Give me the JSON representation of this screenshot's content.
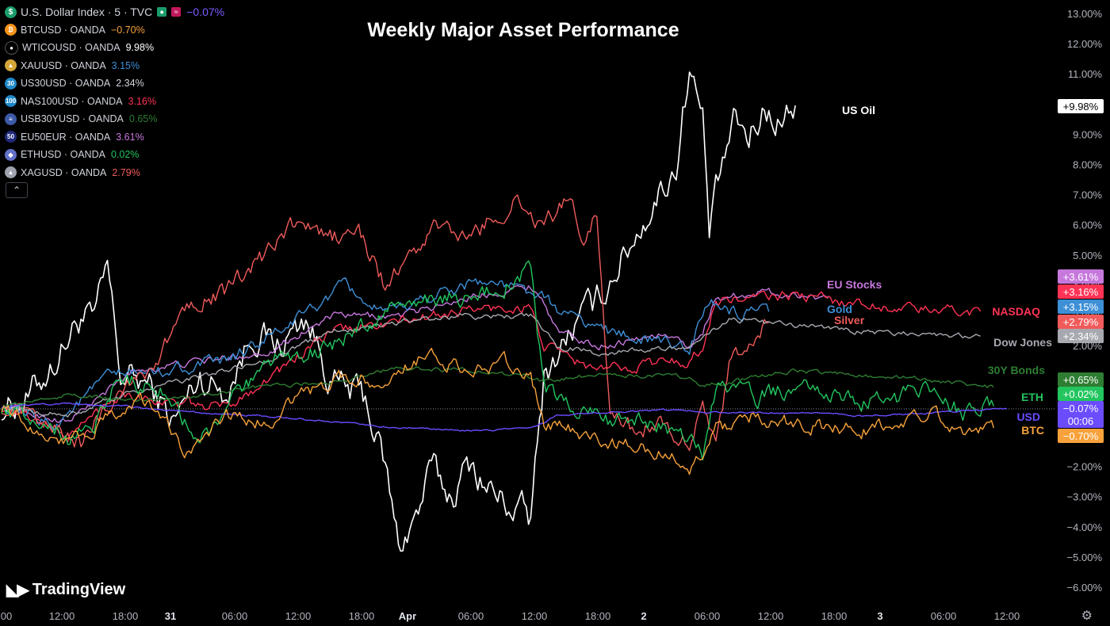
{
  "title": "Weekly Major Asset Performance",
  "legend": {
    "main": {
      "name": "U.S. Dollar Index · 5 · TVC",
      "value": "−0.07%",
      "color": "#7b5cff"
    },
    "items": [
      {
        "name": "BTCUSD · OANDA",
        "value": "−0.70%",
        "color": "#f7a23b",
        "icon": "btc-icon",
        "glyph": "₿",
        "iconColor": "#f7931a"
      },
      {
        "name": "WTICOUSD · OANDA",
        "value": "9.98%",
        "color": "#ffffff",
        "icon": "oil-drop-icon",
        "glyph": "●",
        "iconColor": "#000000"
      },
      {
        "name": "XAUUSD · OANDA",
        "value": "3.15%",
        "color": "#3d8fd6",
        "icon": "gold-icon",
        "glyph": "▲",
        "iconColor": "#d4a537"
      },
      {
        "name": "US30USD · OANDA",
        "value": "2.34%",
        "color": "#d1d4dc",
        "icon": "us30-icon",
        "glyph": "30",
        "iconColor": "#1e88c8"
      },
      {
        "name": "NAS100USD · OANDA",
        "value": "3.16%",
        "color": "#ff3355",
        "icon": "nas100-icon",
        "glyph": "100",
        "iconColor": "#1e88c8"
      },
      {
        "name": "USB30YUSD · OANDA",
        "value": "0.65%",
        "color": "#2e7d32",
        "icon": "us-flag-icon",
        "glyph": "≡",
        "iconColor": "#3c5aa6"
      },
      {
        "name": "EU50EUR · OANDA",
        "value": "3.61%",
        "color": "#c678dd",
        "icon": "eu50-icon",
        "glyph": "50",
        "iconColor": "#1f2a7a"
      },
      {
        "name": "ETHUSD · OANDA",
        "value": "0.02%",
        "color": "#22c55e",
        "icon": "eth-icon",
        "glyph": "◆",
        "iconColor": "#6270c9"
      },
      {
        "name": "XAGUSD · OANDA",
        "value": "2.79%",
        "color": "#f05b5b",
        "icon": "silver-icon",
        "glyph": "▲",
        "iconColor": "#9ea3ad"
      }
    ]
  },
  "brand": "TradingView",
  "chart_data": {
    "type": "line",
    "ylim": [
      -6.5,
      13.5
    ],
    "yticks": [
      "13.00%",
      "12.00%",
      "11.00%",
      "10.00%",
      "9.00%",
      "8.00%",
      "7.00%",
      "6.00%",
      "5.00%",
      "4.00%",
      "3.00%",
      "2.00%",
      "1.00%",
      "0.00%",
      "−1.00%",
      "−2.00%",
      "−3.00%",
      "−4.00%",
      "−5.00%",
      "−6.00%"
    ],
    "ytick_values": [
      13,
      12,
      11,
      10,
      9,
      8,
      7,
      6,
      5,
      4,
      3,
      2,
      1,
      0,
      -1,
      -2,
      -3,
      -4,
      -5,
      -6
    ],
    "xticks": [
      "00",
      "12:00",
      "18:00",
      "31",
      "06:00",
      "12:00",
      "18:00",
      "Apr",
      "06:00",
      "12:00",
      "18:00",
      "2",
      "06:00",
      "12:00",
      "18:00",
      "3",
      "06:00",
      "12:00"
    ],
    "xtick_bold": [
      "31",
      "Apr",
      "2",
      "3"
    ],
    "zero_line": -0.07,
    "series": [
      {
        "name": "US Oil",
        "color": "#ffffff",
        "end": 9.98,
        "label": "US Oil",
        "badge": "+9.98%",
        "keys": [
          [
            0,
            0
          ],
          [
            4,
            0.3
          ],
          [
            8,
            1.5
          ],
          [
            12,
            3
          ],
          [
            14,
            2.8
          ],
          [
            16,
            4.6
          ],
          [
            18,
            1.0
          ],
          [
            22,
            0.8
          ],
          [
            26,
            -0.5
          ],
          [
            30,
            1.0
          ],
          [
            34,
            0.5
          ],
          [
            38,
            2.5
          ],
          [
            42,
            2.0
          ],
          [
            46,
            3.0
          ],
          [
            50,
            0.8
          ],
          [
            55,
            0.3
          ],
          [
            58,
            -2.0
          ],
          [
            60,
            -4.6
          ],
          [
            63,
            -3.5
          ],
          [
            65,
            -2.0
          ],
          [
            68,
            -3.0
          ],
          [
            71,
            -1.8
          ],
          [
            73,
            -2.6
          ],
          [
            76,
            -3.2
          ],
          [
            79,
            -3.5
          ],
          [
            80,
            -3.8
          ],
          [
            82,
            1.0
          ],
          [
            86,
            2.5
          ],
          [
            90,
            3.5
          ],
          [
            94,
            5.0
          ],
          [
            98,
            6.5
          ],
          [
            102,
            8.0
          ],
          [
            104,
            11.3
          ],
          [
            106,
            9.5
          ],
          [
            107,
            5.8
          ],
          [
            109,
            8.0
          ],
          [
            111,
            9.5
          ],
          [
            113,
            8.8
          ],
          [
            115,
            9.8
          ],
          [
            118,
            9.5
          ],
          [
            120,
            9.98
          ]
        ]
      },
      {
        "name": "EU Stocks",
        "color": "#c678dd",
        "end": 3.61,
        "label": "EU Stocks",
        "badge": "+3.61%",
        "keys": [
          [
            0,
            0
          ],
          [
            10,
            -0.5
          ],
          [
            20,
            1.2
          ],
          [
            30,
            1.5
          ],
          [
            40,
            1.8
          ],
          [
            50,
            3.0
          ],
          [
            60,
            3.0
          ],
          [
            70,
            3.6
          ],
          [
            80,
            4.0
          ],
          [
            82,
            3.5
          ],
          [
            84,
            2.5
          ],
          [
            90,
            2.0
          ],
          [
            100,
            2.4
          ],
          [
            104,
            2.0
          ],
          [
            106,
            2.5
          ],
          [
            108,
            3.6
          ],
          [
            115,
            3.8
          ],
          [
            120,
            3.7
          ],
          [
            125,
            3.6
          ]
        ]
      },
      {
        "name": "NASDAQ",
        "color": "#ff3355",
        "end": 3.16,
        "label": "NASDAQ",
        "badge": "+3.16%",
        "keys": [
          [
            0,
            0
          ],
          [
            6,
            -0.5
          ],
          [
            10,
            -1.0
          ],
          [
            18,
            0.5
          ],
          [
            26,
            0.1
          ],
          [
            34,
            0.0
          ],
          [
            42,
            1.2
          ],
          [
            50,
            2.5
          ],
          [
            60,
            2.8
          ],
          [
            70,
            3.2
          ],
          [
            80,
            3.3
          ],
          [
            82,
            2.0
          ],
          [
            90,
            1.2
          ],
          [
            100,
            1.5
          ],
          [
            104,
            1.5
          ],
          [
            106,
            2.0
          ],
          [
            108,
            3.5
          ],
          [
            120,
            3.7
          ],
          [
            130,
            3.4
          ],
          [
            140,
            3.2
          ],
          [
            148,
            3.16
          ]
        ]
      },
      {
        "name": "Gold",
        "color": "#3d8fd6",
        "end": 3.15,
        "label": "Gold",
        "badge": "+3.15%",
        "keys": [
          [
            0,
            0
          ],
          [
            8,
            -0.6
          ],
          [
            16,
            1.0
          ],
          [
            24,
            1.2
          ],
          [
            34,
            1.5
          ],
          [
            42,
            2.5
          ],
          [
            52,
            4.0
          ],
          [
            58,
            3.0
          ],
          [
            64,
            3.6
          ],
          [
            72,
            4.2
          ],
          [
            80,
            3.8
          ],
          [
            86,
            3.0
          ],
          [
            92,
            2.5
          ],
          [
            100,
            2.1
          ],
          [
            104,
            2.0
          ],
          [
            107,
            3.5
          ],
          [
            112,
            3.0
          ],
          [
            116,
            3.15
          ]
        ]
      },
      {
        "name": "Silver",
        "color": "#f05b5b",
        "end": 2.79,
        "label": "Silver",
        "badge": "+2.79%",
        "keys": [
          [
            0,
            0
          ],
          [
            8,
            -0.8
          ],
          [
            12,
            -1.2
          ],
          [
            18,
            0.6
          ],
          [
            24,
            1.6
          ],
          [
            28,
            3.5
          ],
          [
            34,
            3.8
          ],
          [
            40,
            5.0
          ],
          [
            44,
            6.0
          ],
          [
            50,
            5.6
          ],
          [
            54,
            5.8
          ],
          [
            58,
            4.0
          ],
          [
            62,
            5.0
          ],
          [
            66,
            6.0
          ],
          [
            70,
            5.5
          ],
          [
            74,
            6.2
          ],
          [
            78,
            6.8
          ],
          [
            82,
            6.0
          ],
          [
            86,
            6.9
          ],
          [
            88,
            5.5
          ],
          [
            90,
            6.6
          ],
          [
            92,
            -0.2
          ],
          [
            96,
            -0.8
          ],
          [
            100,
            -0.5
          ],
          [
            104,
            -1.2
          ],
          [
            106,
            0.2
          ],
          [
            108,
            -1.5
          ],
          [
            110,
            1.2
          ],
          [
            112,
            2.0
          ],
          [
            114,
            2.3
          ],
          [
            116,
            2.79
          ]
        ]
      },
      {
        "name": "Dow Jones",
        "color": "#a7a9b0",
        "end": 2.34,
        "label": "Dow Jones",
        "badge": "+2.34%",
        "keys": [
          [
            0,
            0
          ],
          [
            10,
            -0.3
          ],
          [
            20,
            0.5
          ],
          [
            30,
            1.0
          ],
          [
            40,
            1.5
          ],
          [
            50,
            2.5
          ],
          [
            60,
            2.8
          ],
          [
            70,
            3.0
          ],
          [
            80,
            3.0
          ],
          [
            84,
            2.0
          ],
          [
            90,
            1.8
          ],
          [
            100,
            1.9
          ],
          [
            104,
            2.0
          ],
          [
            106,
            2.3
          ],
          [
            110,
            2.9
          ],
          [
            120,
            2.7
          ],
          [
            130,
            2.5
          ],
          [
            140,
            2.4
          ],
          [
            148,
            2.34
          ]
        ]
      },
      {
        "name": "30Y Bonds",
        "color": "#2e7d32",
        "end": 0.65,
        "label": "30Y Bonds",
        "badge": "+0.65%",
        "keys": [
          [
            0,
            0
          ],
          [
            10,
            0.4
          ],
          [
            20,
            0.2
          ],
          [
            30,
            0.4
          ],
          [
            40,
            0.7
          ],
          [
            50,
            0.8
          ],
          [
            60,
            1.3
          ],
          [
            70,
            1.2
          ],
          [
            80,
            1.0
          ],
          [
            82,
            0.8
          ],
          [
            90,
            1.1
          ],
          [
            100,
            1.0
          ],
          [
            104,
            1.0
          ],
          [
            106,
            0.7
          ],
          [
            110,
            0.8
          ],
          [
            120,
            1.2
          ],
          [
            140,
            0.9
          ],
          [
            150,
            0.65
          ]
        ]
      },
      {
        "name": "ETH",
        "color": "#22c55e",
        "end": 0.02,
        "label": "ETH",
        "badge": "+0.02%",
        "keys": [
          [
            0,
            0
          ],
          [
            6,
            -0.4
          ],
          [
            10,
            -1.0
          ],
          [
            14,
            -0.5
          ],
          [
            18,
            1.0
          ],
          [
            24,
            0.6
          ],
          [
            30,
            -1.2
          ],
          [
            36,
            0.4
          ],
          [
            42,
            1.6
          ],
          [
            50,
            2.0
          ],
          [
            58,
            3.2
          ],
          [
            66,
            3.5
          ],
          [
            74,
            3.8
          ],
          [
            80,
            4.5
          ],
          [
            82,
            0.6
          ],
          [
            90,
            -0.4
          ],
          [
            100,
            -0.6
          ],
          [
            104,
            -1.0
          ],
          [
            106,
            -1.5
          ],
          [
            108,
            0.6
          ],
          [
            114,
            0.3
          ],
          [
            120,
            0.6
          ],
          [
            130,
            0.1
          ],
          [
            140,
            0.5
          ],
          [
            146,
            -0.3
          ],
          [
            150,
            0.02
          ]
        ]
      },
      {
        "name": "USD",
        "color": "#6b4cff",
        "end": -0.07,
        "label": "USD",
        "badge": "−0.07%",
        "badge2": "00:06",
        "keys": [
          [
            0,
            0
          ],
          [
            10,
            0.1
          ],
          [
            20,
            0.0
          ],
          [
            30,
            -0.2
          ],
          [
            40,
            -0.3
          ],
          [
            50,
            -0.5
          ],
          [
            60,
            -0.7
          ],
          [
            70,
            -0.8
          ],
          [
            80,
            -0.7
          ],
          [
            84,
            -0.3
          ],
          [
            90,
            -0.2
          ],
          [
            100,
            -0.1
          ],
          [
            110,
            -0.2
          ],
          [
            120,
            -0.2
          ],
          [
            130,
            -0.3
          ],
          [
            140,
            -0.2
          ],
          [
            152,
            -0.07
          ]
        ]
      },
      {
        "name": "BTC",
        "color": "#f7a23b",
        "end": -0.7,
        "label": "BTC",
        "badge": "−0.70%",
        "keys": [
          [
            0,
            0
          ],
          [
            6,
            -0.8
          ],
          [
            10,
            -1.2
          ],
          [
            16,
            -0.4
          ],
          [
            22,
            0.2
          ],
          [
            28,
            -1.5
          ],
          [
            34,
            -0.3
          ],
          [
            40,
            -0.6
          ],
          [
            46,
            0.5
          ],
          [
            52,
            1.0
          ],
          [
            58,
            0.8
          ],
          [
            64,
            1.8
          ],
          [
            70,
            1.2
          ],
          [
            76,
            1.5
          ],
          [
            80,
            1.0
          ],
          [
            82,
            -0.6
          ],
          [
            90,
            -1.0
          ],
          [
            100,
            -1.5
          ],
          [
            104,
            -2.0
          ],
          [
            106,
            -1.6
          ],
          [
            108,
            -0.8
          ],
          [
            114,
            -0.3
          ],
          [
            120,
            -0.6
          ],
          [
            130,
            -0.8
          ],
          [
            140,
            -0.2
          ],
          [
            146,
            -0.8
          ],
          [
            150,
            -0.7
          ]
        ]
      }
    ]
  }
}
